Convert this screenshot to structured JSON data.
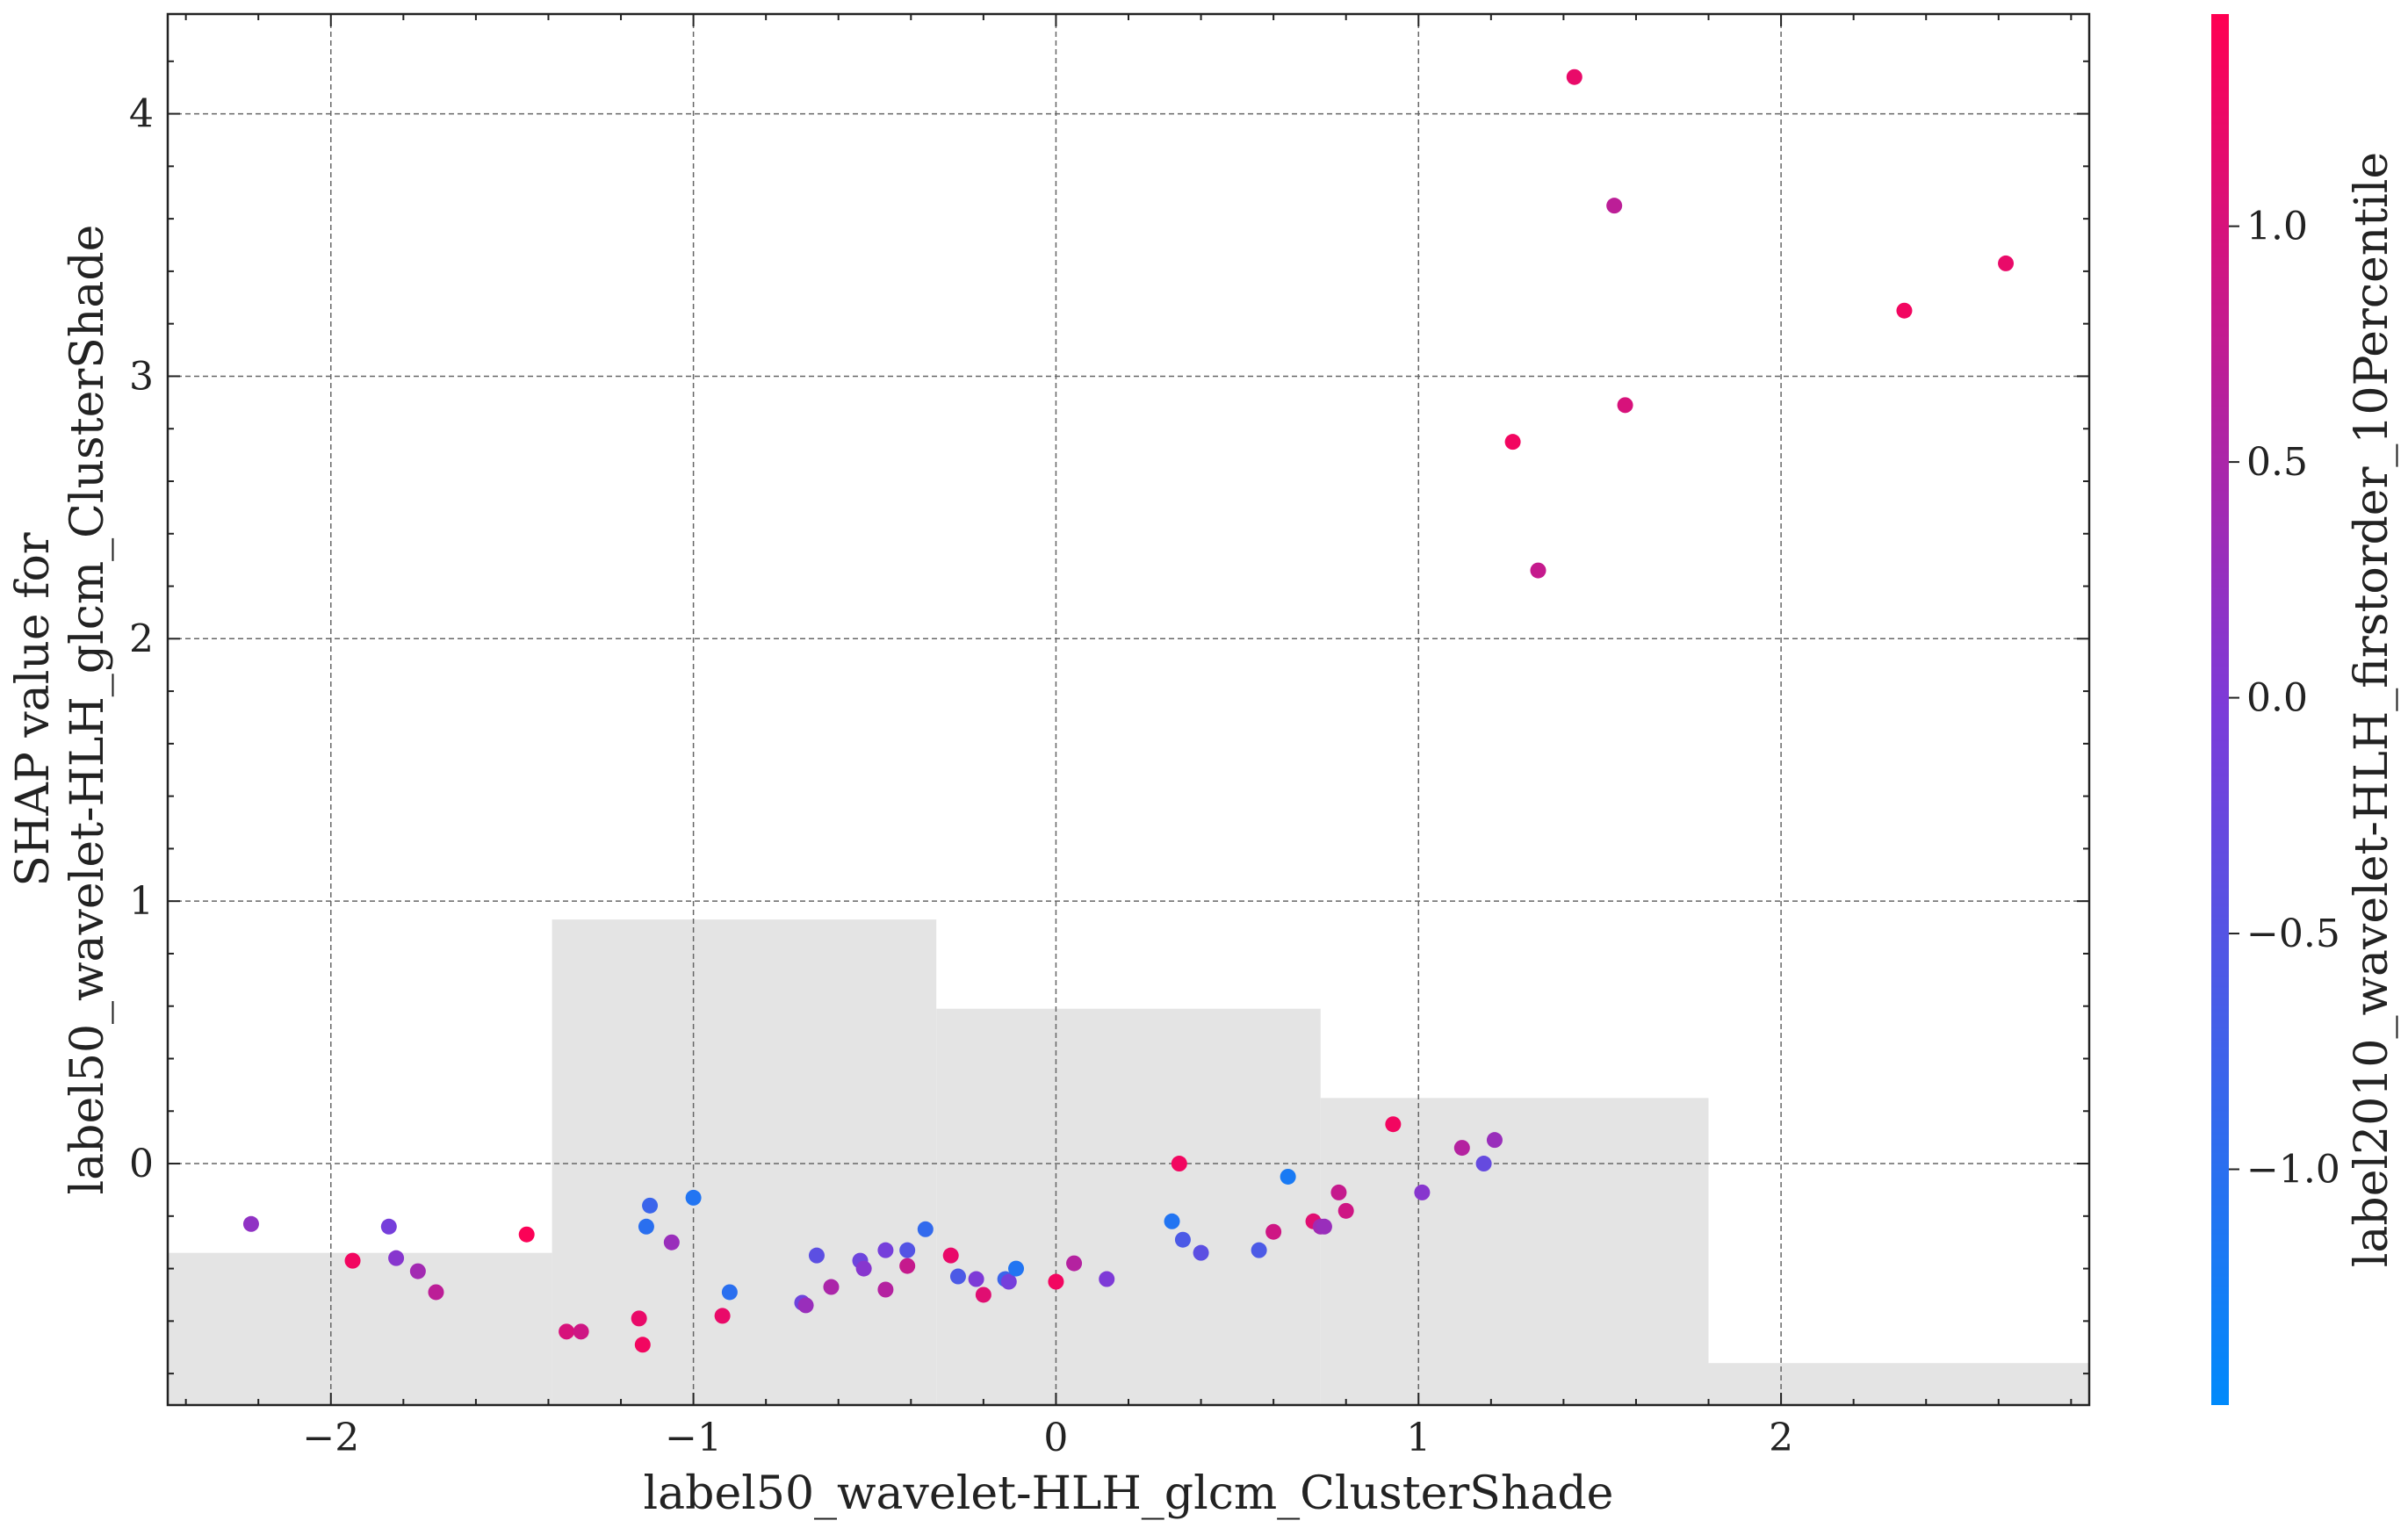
{
  "chart_data": {
    "type": "scatter",
    "title": "",
    "xlabel": "label50_wavelet-HLH_glcm_ClusterShade",
    "ylabel_lines": [
      "SHAP value for",
      "label50_wavelet-HLH_glcm_ClusterShade"
    ],
    "xlim": [
      -2.45,
      2.85
    ],
    "ylim": [
      -0.92,
      4.38
    ],
    "xticks": [
      -2,
      -1,
      0,
      1,
      2
    ],
    "xtick_labels": [
      "−2",
      "−1",
      "0",
      "1",
      "2"
    ],
    "yticks": [
      0,
      1,
      2,
      3,
      4
    ],
    "ytick_labels": [
      "0",
      "1",
      "2",
      "3",
      "4"
    ],
    "grid": true,
    "colorbar": {
      "label": "label2010_wavelet-HLH_firstorder_10Percentile",
      "vmin": -1.5,
      "vmax": 1.45,
      "ticks": [
        -1.0,
        -0.5,
        0.0,
        0.5,
        1.0
      ],
      "tick_labels": [
        "−1.0",
        "−0.5",
        "0.0",
        "0.5",
        "1.0"
      ],
      "color_low": "#008afb",
      "color_mid": "#7c3bd9",
      "color_high": "#ff0052"
    },
    "histogram": {
      "color": "#e4e4e4",
      "bin_edges": [
        -2.45,
        -1.39,
        -0.33,
        0.73,
        1.8,
        2.85
      ],
      "heights": [
        -0.34,
        0.93,
        0.59,
        0.25,
        -0.76
      ]
    },
    "points": [
      {
        "x": -2.22,
        "y": -0.23,
        "c": 0.2
      },
      {
        "x": -1.94,
        "y": -0.37,
        "c": 1.3
      },
      {
        "x": -1.84,
        "y": -0.24,
        "c": -0.1
      },
      {
        "x": -1.82,
        "y": -0.36,
        "c": 0.1
      },
      {
        "x": -1.76,
        "y": -0.41,
        "c": 0.4
      },
      {
        "x": -1.71,
        "y": -0.49,
        "c": 0.7
      },
      {
        "x": -1.46,
        "y": -0.27,
        "c": 1.4
      },
      {
        "x": -1.35,
        "y": -0.64,
        "c": 1.0
      },
      {
        "x": -1.31,
        "y": -0.64,
        "c": 0.9
      },
      {
        "x": -1.15,
        "y": -0.59,
        "c": 1.2
      },
      {
        "x": -1.14,
        "y": -0.69,
        "c": 1.3
      },
      {
        "x": -1.13,
        "y": -0.24,
        "c": -1.0
      },
      {
        "x": -1.12,
        "y": -0.16,
        "c": -0.8
      },
      {
        "x": -1.06,
        "y": -0.3,
        "c": 0.3
      },
      {
        "x": -1.0,
        "y": -0.13,
        "c": -1.1
      },
      {
        "x": -0.92,
        "y": -0.58,
        "c": 1.2
      },
      {
        "x": -0.9,
        "y": -0.49,
        "c": -1.0
      },
      {
        "x": -0.7,
        "y": -0.53,
        "c": -0.2
      },
      {
        "x": -0.69,
        "y": -0.54,
        "c": 0.3
      },
      {
        "x": -0.66,
        "y": -0.35,
        "c": -0.4
      },
      {
        "x": -0.62,
        "y": -0.47,
        "c": 0.5
      },
      {
        "x": -0.54,
        "y": -0.37,
        "c": -0.2
      },
      {
        "x": -0.53,
        "y": -0.4,
        "c": 0.1
      },
      {
        "x": -0.47,
        "y": -0.48,
        "c": 0.6
      },
      {
        "x": -0.47,
        "y": -0.33,
        "c": -0.1
      },
      {
        "x": -0.41,
        "y": -0.33,
        "c": -0.5
      },
      {
        "x": -0.41,
        "y": -0.39,
        "c": 0.8
      },
      {
        "x": -0.36,
        "y": -0.25,
        "c": -0.9
      },
      {
        "x": -0.29,
        "y": -0.35,
        "c": 1.2
      },
      {
        "x": -0.27,
        "y": -0.43,
        "c": -0.6
      },
      {
        "x": -0.22,
        "y": -0.44,
        "c": 0.0
      },
      {
        "x": -0.2,
        "y": -0.5,
        "c": 1.1
      },
      {
        "x": -0.14,
        "y": -0.44,
        "c": -0.8
      },
      {
        "x": -0.13,
        "y": -0.45,
        "c": -0.1
      },
      {
        "x": -0.11,
        "y": -0.4,
        "c": -1.1
      },
      {
        "x": 0.0,
        "y": -0.45,
        "c": 1.3
      },
      {
        "x": 0.05,
        "y": -0.38,
        "c": 0.6
      },
      {
        "x": 0.14,
        "y": -0.44,
        "c": 0.0
      },
      {
        "x": 0.32,
        "y": -0.22,
        "c": -1.1
      },
      {
        "x": 0.34,
        "y": 0.0,
        "c": 1.3
      },
      {
        "x": 0.35,
        "y": -0.29,
        "c": -0.6
      },
      {
        "x": 0.4,
        "y": -0.34,
        "c": -0.4
      },
      {
        "x": 0.56,
        "y": -0.33,
        "c": -0.6
      },
      {
        "x": 0.6,
        "y": -0.26,
        "c": 0.9
      },
      {
        "x": 0.64,
        "y": -0.05,
        "c": -1.2
      },
      {
        "x": 0.71,
        "y": -0.22,
        "c": 1.1
      },
      {
        "x": 0.73,
        "y": -0.24,
        "c": 0.4
      },
      {
        "x": 0.74,
        "y": -0.24,
        "c": 0.3
      },
      {
        "x": 0.78,
        "y": -0.11,
        "c": 0.8
      },
      {
        "x": 0.8,
        "y": -0.18,
        "c": 0.9
      },
      {
        "x": 0.93,
        "y": 0.15,
        "c": 1.3
      },
      {
        "x": 1.01,
        "y": -0.11,
        "c": 0.1
      },
      {
        "x": 1.12,
        "y": 0.06,
        "c": 0.6
      },
      {
        "x": 1.18,
        "y": 0.0,
        "c": -0.3
      },
      {
        "x": 1.21,
        "y": 0.09,
        "c": 0.3
      },
      {
        "x": 1.26,
        "y": 2.75,
        "c": 1.3
      },
      {
        "x": 1.33,
        "y": 2.26,
        "c": 0.8
      },
      {
        "x": 1.43,
        "y": 4.14,
        "c": 1.2
      },
      {
        "x": 1.54,
        "y": 3.65,
        "c": 0.7
      },
      {
        "x": 1.57,
        "y": 2.89,
        "c": 1.0
      },
      {
        "x": 2.34,
        "y": 3.25,
        "c": 1.3
      },
      {
        "x": 2.62,
        "y": 3.43,
        "c": 1.2
      }
    ]
  }
}
